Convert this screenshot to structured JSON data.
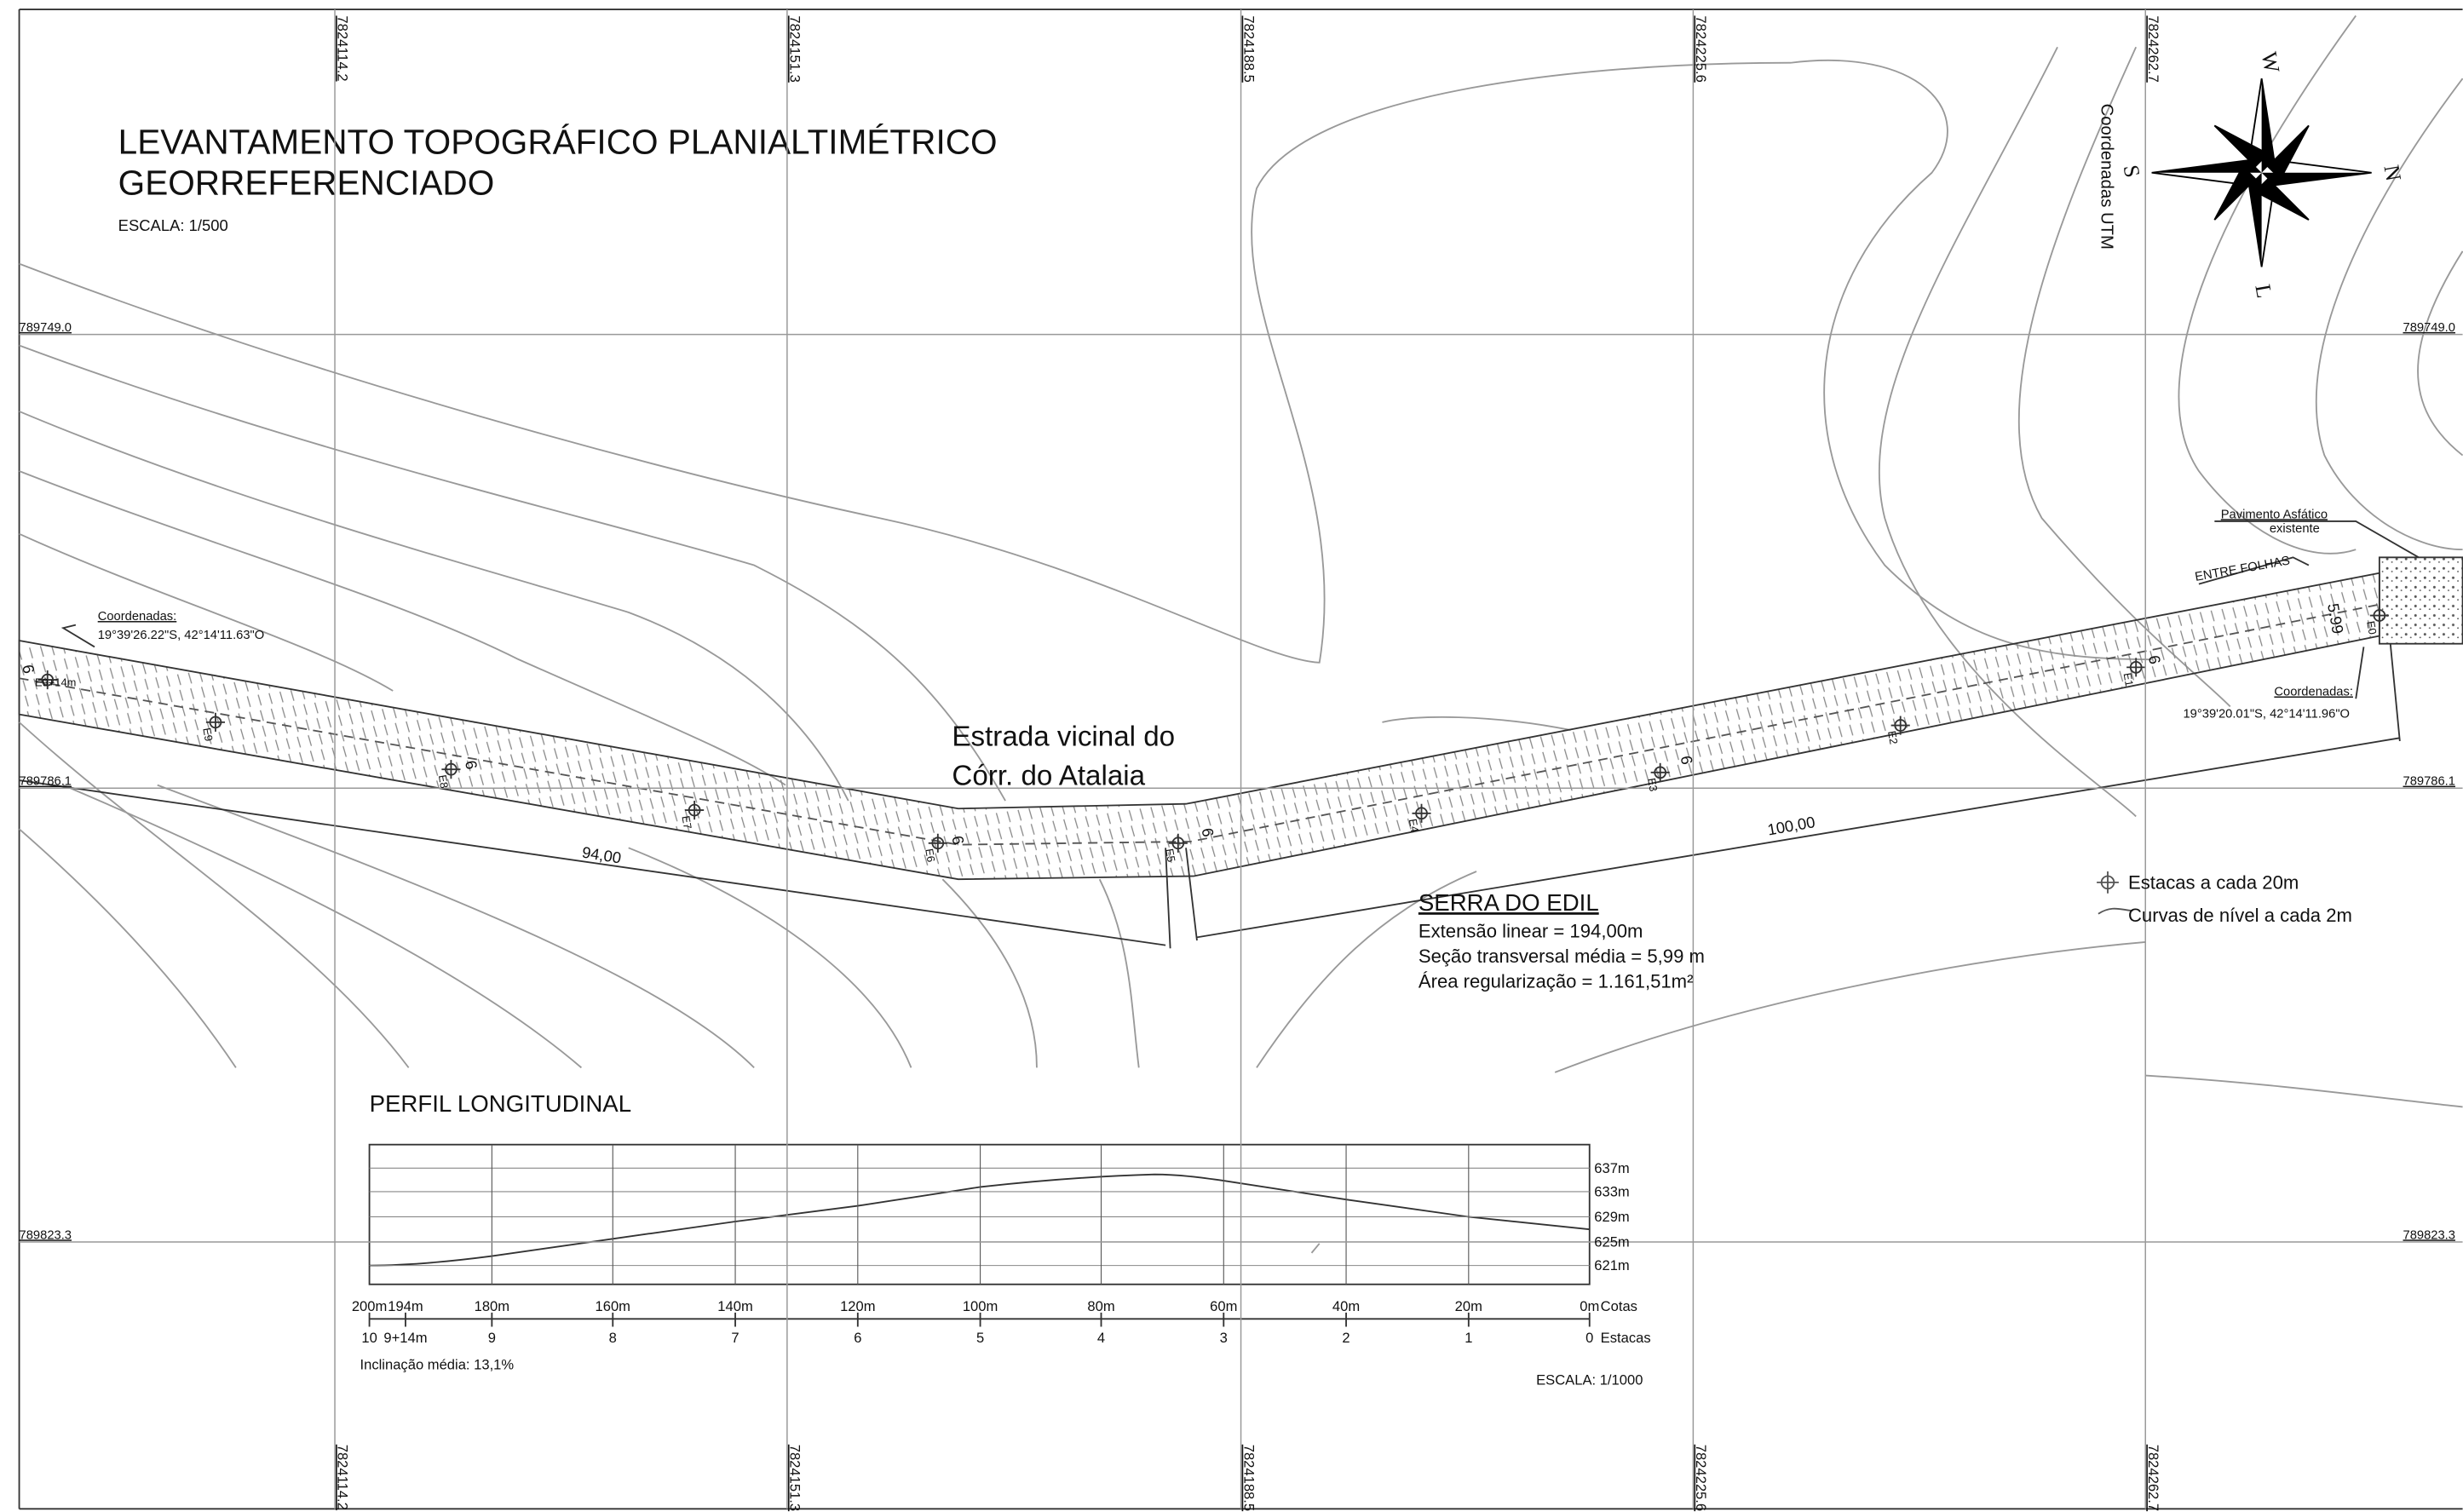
{
  "header": {
    "title_lines": [
      "LEVANTAMENTO TOPOGRÁFICO PLANIALTIMÉTRICO",
      "GEORREFERENCIADO"
    ],
    "scale": "ESCALA: 1/500"
  },
  "grid": {
    "eastings": [
      "7824114.2",
      "7824151.3",
      "7824188.5",
      "7824225.6",
      "7824262.7"
    ],
    "northings": [
      "789749.0",
      "789786.1",
      "789823.3"
    ]
  },
  "compass": {
    "north": "N",
    "south": "S",
    "east": "L",
    "west": "W",
    "caption": "Coordenadas UTM"
  },
  "road": {
    "name_lines": [
      "Estrada vicinal do",
      "Córr.  do Atalaia"
    ],
    "stations": [
      "E0",
      "E1",
      "E2",
      "E3",
      "E4",
      "E5",
      "E6",
      "E7",
      "E8",
      "E9",
      "E9+14m"
    ],
    "widths": [
      "5.99",
      "6",
      "6",
      "6",
      "6",
      "6",
      "6"
    ],
    "segments": [
      "94,00",
      "100,00"
    ],
    "start": {
      "label": "Coordenadas:",
      "value": "19°39'26.22\"S, 42°14'11.63\"O"
    },
    "end": {
      "label": "Coordenadas:",
      "value": "19°39'20.01\"S, 42°14'11.96\"O"
    },
    "pavement": [
      "Pavimento Asfático",
      "existente"
    ],
    "entre_folhas": "ENTRE FOLHAS"
  },
  "info": {
    "title": "SERRA DO EDIL",
    "lines": [
      "Extensão linear = 194,00m",
      "Seção transversal média = 5,99  m",
      "Área regularização = 1.161,51m²"
    ]
  },
  "legend": [
    "Estacas a cada 20m",
    "Curvas de nível a cada 2m"
  ],
  "profile": {
    "title": "PERFIL LONGITUDINAL",
    "elevations": [
      "637m",
      "633m",
      "629m",
      "625m",
      "621m"
    ],
    "distances": [
      "200m",
      "194m",
      "180m",
      "160m",
      "140m",
      "120m",
      "100m",
      "80m",
      "60m",
      "40m",
      "20m",
      "0m"
    ],
    "distances_caption": "Cotas",
    "stations": [
      "10",
      "9+14m",
      "9",
      "8",
      "7",
      "6",
      "5",
      "4",
      "3",
      "2",
      "1",
      "0"
    ],
    "stations_caption": "Estacas",
    "slope": "Inclinação média: 13,1%",
    "scale": "ESCALA: 1/1000"
  }
}
